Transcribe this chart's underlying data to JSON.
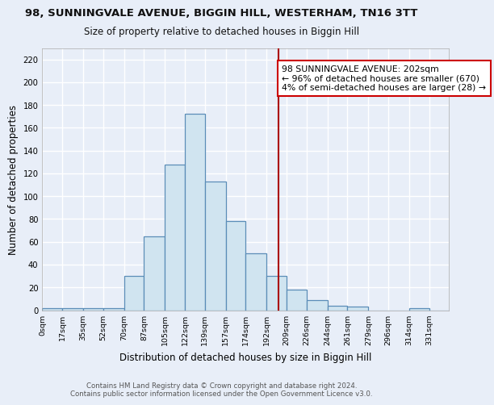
{
  "title": "98, SUNNINGVALE AVENUE, BIGGIN HILL, WESTERHAM, TN16 3TT",
  "subtitle": "Size of property relative to detached houses in Biggin Hill",
  "xlabel": "Distribution of detached houses by size in Biggin Hill",
  "ylabel": "Number of detached properties",
  "footer1": "Contains HM Land Registry data © Crown copyright and database right 2024.",
  "footer2": "Contains public sector information licensed under the Open Government Licence v3.0.",
  "bin_edges": [
    0,
    17,
    35,
    52,
    70,
    87,
    105,
    122,
    139,
    157,
    174,
    192,
    209,
    226,
    244,
    261,
    279,
    296,
    314,
    331,
    348
  ],
  "counts": [
    2,
    2,
    2,
    2,
    30,
    65,
    128,
    172,
    113,
    78,
    50,
    30,
    18,
    9,
    4,
    3,
    0,
    0,
    2,
    0
  ],
  "bar_color": "#d0e4f0",
  "bar_edge_color": "#5b8db8",
  "property_sqm": 202,
  "vline_color": "#aa0000",
  "ann_line1": "98 SUNNINGVALE AVENUE: 202sqm",
  "ann_line2": "← 96% of detached houses are smaller (670)",
  "ann_line3": "4% of semi-detached houses are larger (28) →",
  "ann_box_fc": "#ffffff",
  "ann_box_ec": "#cc0000",
  "ylim": [
    0,
    230
  ],
  "yticks": [
    0,
    20,
    40,
    60,
    80,
    100,
    120,
    140,
    160,
    180,
    200,
    220
  ],
  "bg_color": "#e8eef8",
  "grid_color": "#d0d8e8"
}
